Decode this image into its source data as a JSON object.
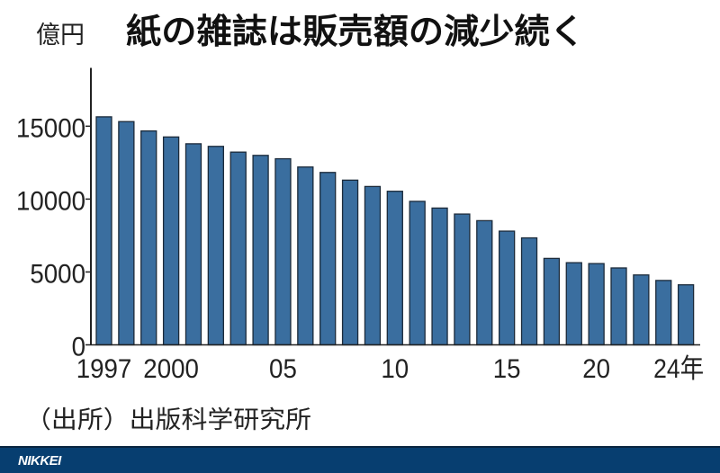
{
  "chart_data": {
    "type": "bar",
    "title": "紙の雑誌は販売額の減少続く",
    "unit_label": "億円",
    "source": "（出所）出版科学研究所",
    "categories": [
      "1997",
      "1998",
      "1999",
      "2000",
      "2001",
      "2002",
      "2003",
      "2004",
      "2005",
      "2006",
      "2007",
      "2008",
      "2009",
      "2010",
      "2011",
      "2012",
      "2013",
      "2014",
      "2015",
      "2016",
      "2018",
      "2019",
      "2020",
      "2021",
      "2022",
      "2023",
      "2024"
    ],
    "values": [
      15644,
      15315,
      14672,
      14261,
      13794,
      13616,
      13222,
      12998,
      12767,
      12200,
      11827,
      11299,
      10864,
      10536,
      9844,
      9385,
      8972,
      8520,
      7801,
      7339,
      5930,
      5637,
      5576,
      5276,
      4795,
      4418,
      4119
    ],
    "ylim": [
      0,
      19000
    ],
    "yticks": [
      0,
      5000,
      10000,
      15000
    ],
    "ytick_labels": [
      "0",
      "5000",
      "10000",
      "15000"
    ],
    "xtick_labels": [
      {
        "category": "1997",
        "label": "1997"
      },
      {
        "category": "2000",
        "label": "2000"
      },
      {
        "category": "2005",
        "label": "05"
      },
      {
        "category": "2010",
        "label": "10"
      },
      {
        "category": "2015",
        "label": "15"
      },
      {
        "category": "2020",
        "label": "20"
      },
      {
        "category": "2024",
        "label": "24年"
      }
    ],
    "grid": false,
    "legend": "none",
    "bar_color": "#3a6e9f",
    "bar_edge_color": "#1b2a3a"
  },
  "footer": {
    "brand": "NIKKEI",
    "color": "#073e70"
  }
}
